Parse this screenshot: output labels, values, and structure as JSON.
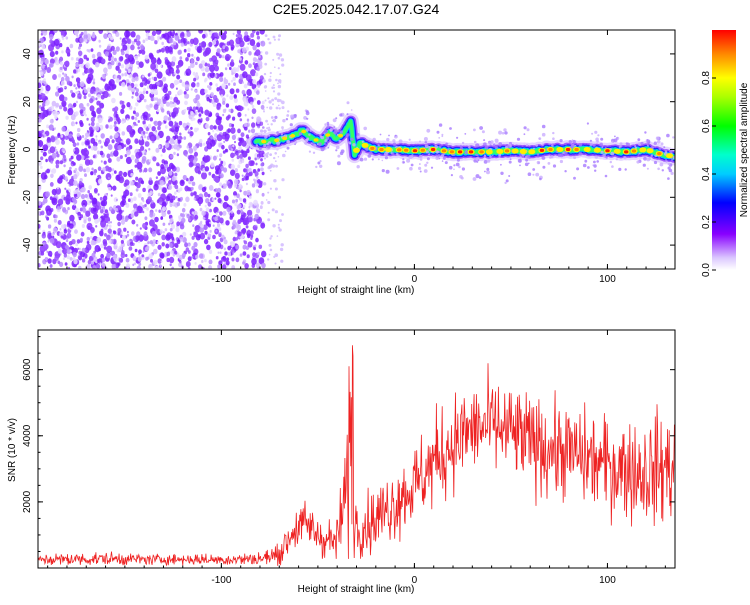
{
  "title": "C2E5.2025.042.17.07.G24",
  "chart_data": [
    {
      "type": "heatmap",
      "xlabel": "Height of straight line (km)",
      "ylabel": "Frequency (Hz)",
      "xlim": [
        -195,
        135
      ],
      "ylim": [
        -50,
        50
      ],
      "xticks": [
        -100,
        0,
        100
      ],
      "yticks": [
        -40,
        -20,
        0,
        20,
        40
      ],
      "colorbar": {
        "label": "Normalized spectral amplitude",
        "range": [
          0,
          1
        ],
        "ticks": [
          0.0,
          0.2,
          0.4,
          0.6,
          0.8
        ],
        "tick_labels": [
          "0.0",
          "0.2",
          "0.4",
          "0.6",
          "0.8"
        ]
      },
      "noise_region_x": [
        -195,
        -78
      ],
      "trace": {
        "x": [
          -82,
          -75,
          -70,
          -62,
          -58,
          -54,
          -48,
          -46,
          -44,
          -40,
          -36,
          -33,
          -31,
          -28,
          -24,
          -20,
          -10,
          0,
          10,
          20,
          30,
          40,
          50,
          60,
          70,
          80,
          90,
          100,
          110,
          120,
          128,
          135
        ],
        "y": [
          3,
          3.5,
          4,
          6,
          8,
          5,
          3,
          5,
          7,
          4,
          8,
          12,
          -2,
          3,
          1,
          0,
          0,
          -0.5,
          0,
          -1,
          -1,
          -1,
          -0.5,
          -1,
          0,
          0,
          0,
          -0.5,
          -1,
          0,
          -2,
          -3
        ]
      }
    },
    {
      "type": "line",
      "xlabel": "Height of straight line (km)",
      "ylabel": "SNR (10 * v/v)",
      "xlim": [
        -195,
        135
      ],
      "ylim": [
        0,
        7200
      ],
      "xticks": [
        -100,
        0,
        100
      ],
      "yticks": [
        2000,
        4000,
        6000
      ],
      "color": "#ee2222",
      "envelope": {
        "x": [
          -195,
          -160,
          -140,
          -120,
          -100,
          -80,
          -70,
          -62,
          -55,
          -48,
          -40,
          -35,
          -33,
          -31,
          -29,
          -25,
          -20,
          -10,
          0,
          10,
          20,
          30,
          40,
          50,
          60,
          70,
          80,
          90,
          100,
          110,
          120,
          128,
          135
        ],
        "mean": [
          250,
          280,
          260,
          260,
          250,
          280,
          400,
          1200,
          1300,
          900,
          800,
          2500,
          3000,
          1500,
          1200,
          1300,
          1500,
          2000,
          2500,
          3200,
          3800,
          4200,
          4300,
          4100,
          3800,
          3600,
          3500,
          3300,
          3100,
          3000,
          2900,
          3000,
          3100
        ],
        "spread": [
          150,
          200,
          150,
          150,
          150,
          200,
          300,
          600,
          700,
          500,
          600,
          1500,
          3000,
          900,
          700,
          800,
          900,
          1000,
          1100,
          1300,
          1300,
          1200,
          1300,
          1300,
          1300,
          1300,
          1300,
          1300,
          1300,
          1400,
          1400,
          1600,
          1500
        ]
      }
    }
  ]
}
